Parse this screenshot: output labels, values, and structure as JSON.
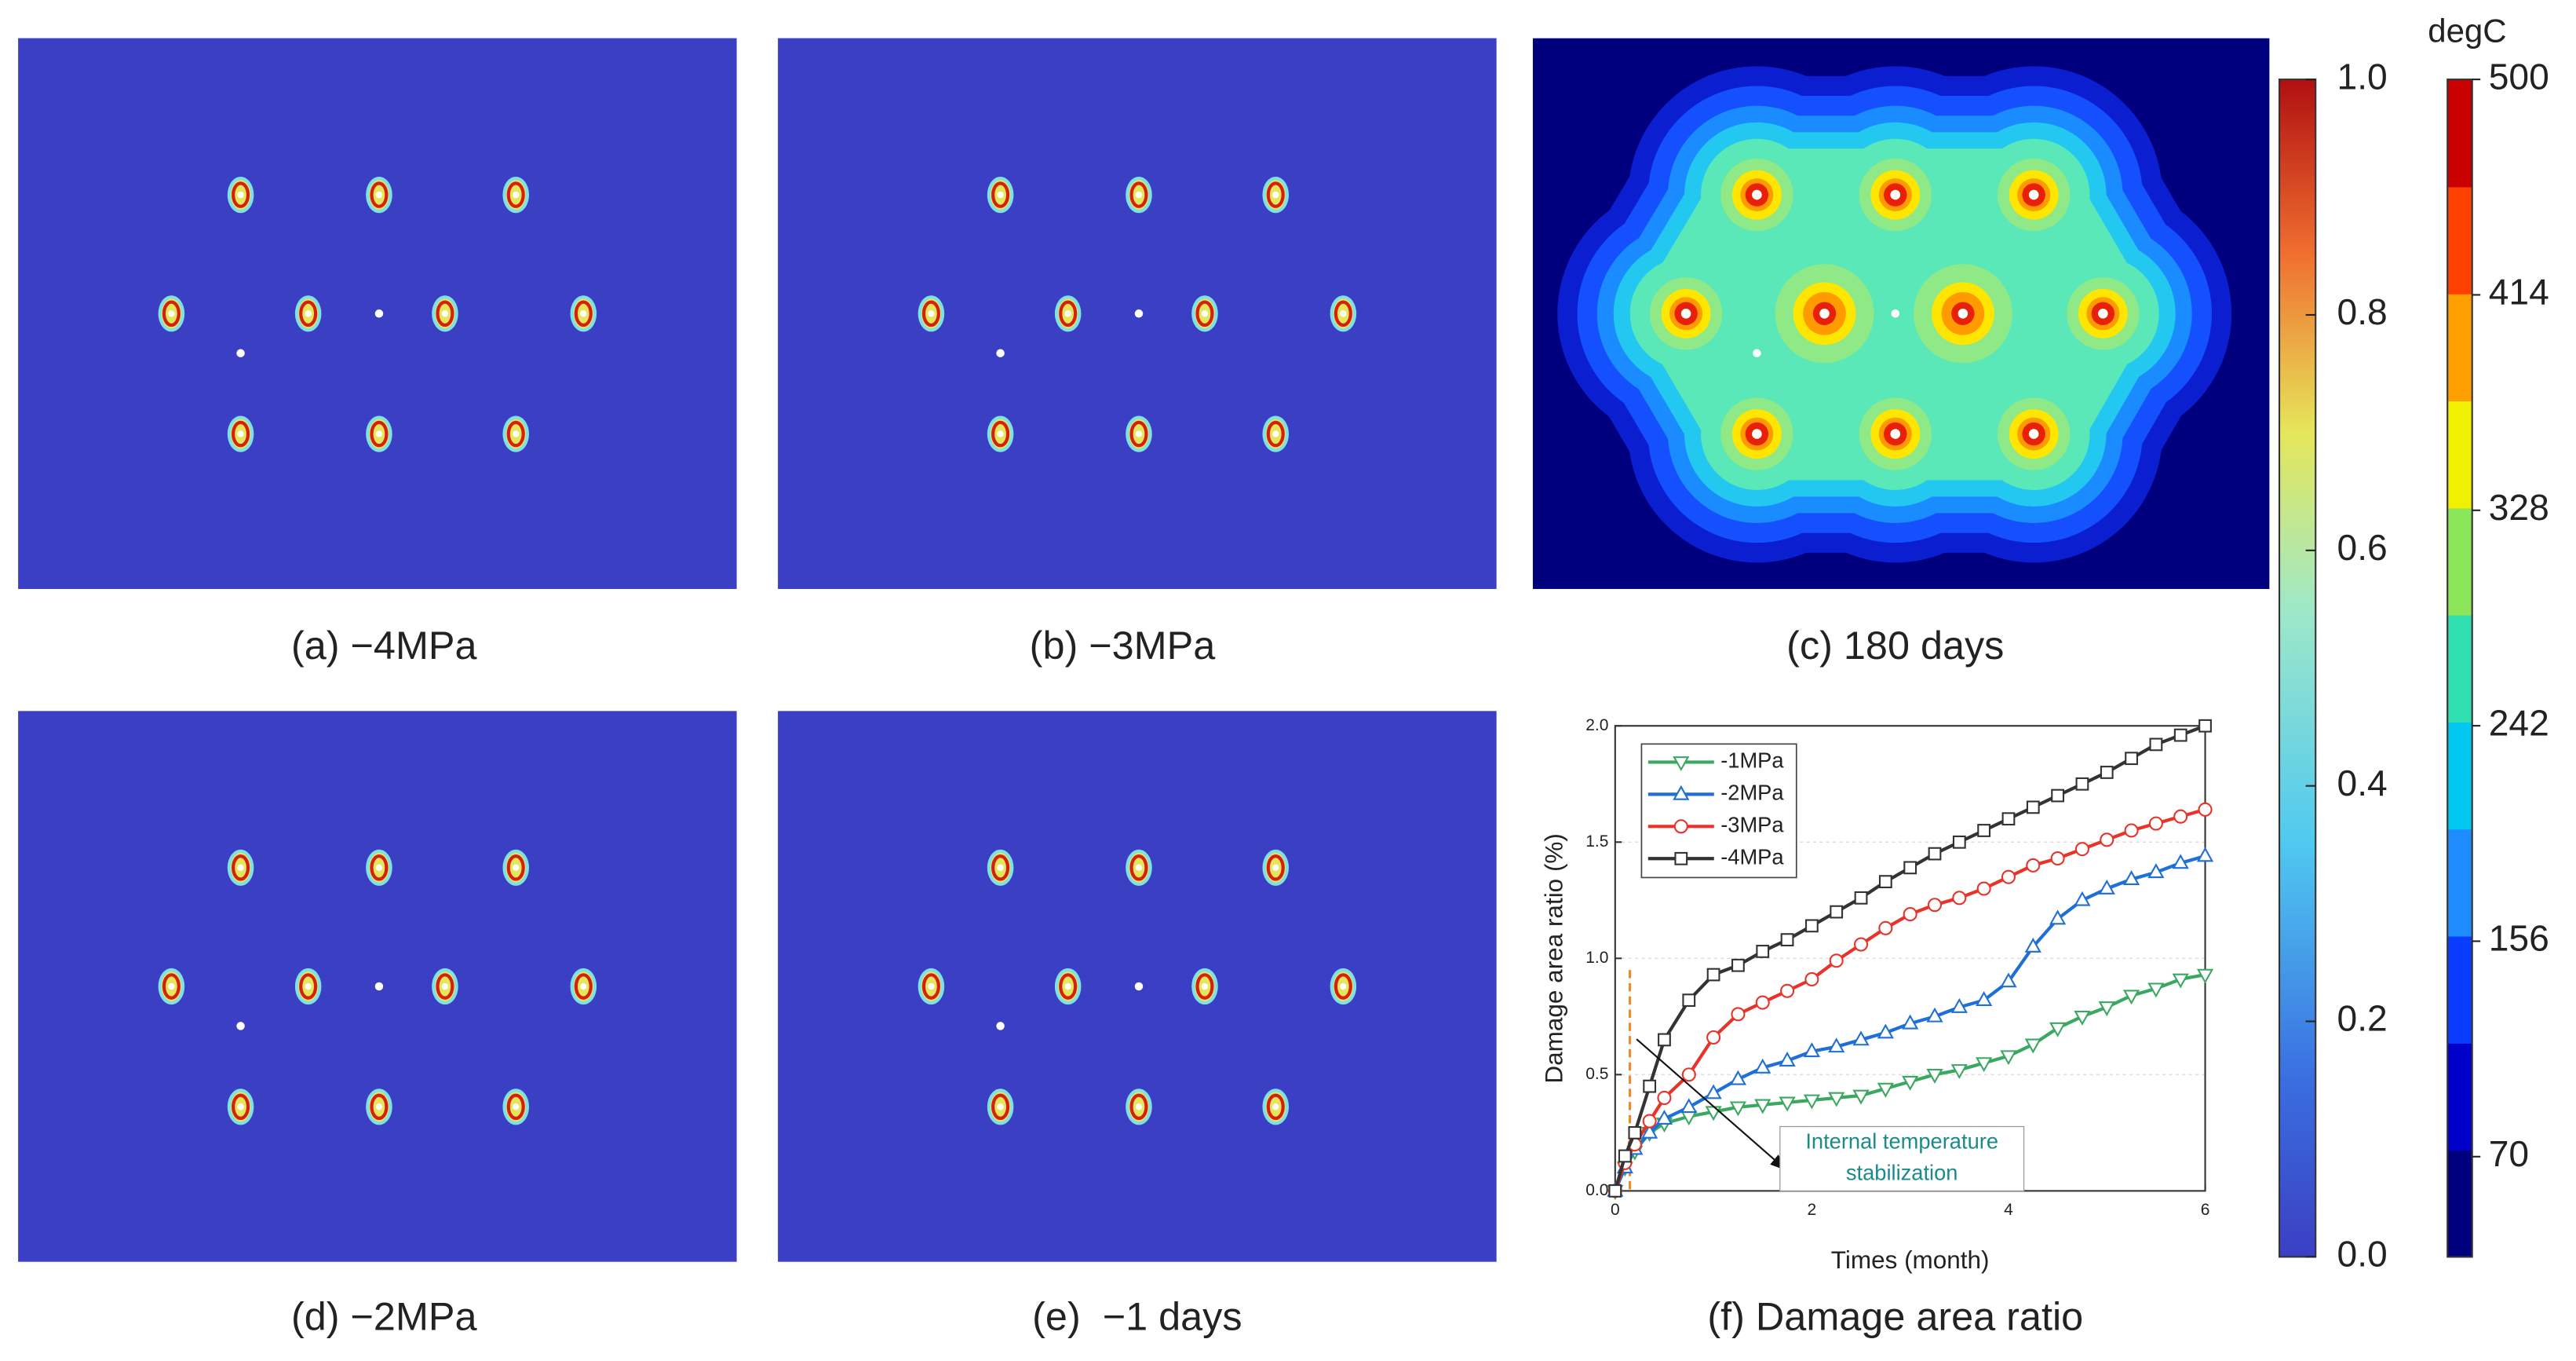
{
  "panels": [
    {
      "caption": "(a) −4MPa"
    },
    {
      "caption": "(b) −3MPa"
    },
    {
      "caption": "(c) 180 days"
    },
    {
      "caption": "(d) −2MPa"
    },
    {
      "caption": "(e)  −1 days"
    },
    {
      "caption": "(f) Damage area ratio"
    }
  ],
  "damage_colorbar": {
    "lim": [
      0,
      1
    ],
    "ticks": [
      {
        "value": 0,
        "label": "0.0"
      },
      0.2,
      0.4,
      0.6,
      0.8,
      {
        "value": 1,
        "label": "1.0"
      }
    ]
  },
  "temperature_colorbar": {
    "title": "degC",
    "lim": [
      30,
      500
    ],
    "ticks": [
      70,
      156,
      242,
      328,
      414,
      500
    ],
    "colors": [
      "#00007f",
      "#0000c8",
      "#0a3cff",
      "#1e8cff",
      "#00c8f0",
      "#30e0b0",
      "#8ce65a",
      "#f0f000",
      "#ffa000",
      "#ff4000",
      "#c80000"
    ]
  },
  "chart_data": {
    "type": "line",
    "xlabel": "Times (month)",
    "ylabel": "Damage area ratio (%)",
    "x": [
      0,
      0.1,
      0.2,
      0.35,
      0.5,
      0.75,
      1.0,
      1.25,
      1.5,
      1.75,
      2.0,
      2.25,
      2.5,
      2.75,
      3.0,
      3.25,
      3.5,
      3.75,
      4.0,
      4.25,
      4.5,
      4.75,
      5.0,
      5.25,
      5.5,
      5.75,
      6.0
    ],
    "series": [
      {
        "name": "-1MPa",
        "color": "#3aa860",
        "marker": "triangle-down",
        "values": [
          0,
          0.1,
          0.17,
          0.25,
          0.29,
          0.32,
          0.34,
          0.36,
          0.37,
          0.38,
          0.39,
          0.4,
          0.41,
          0.44,
          0.47,
          0.5,
          0.52,
          0.55,
          0.58,
          0.63,
          0.7,
          0.75,
          0.79,
          0.84,
          0.87,
          0.91,
          0.93
        ]
      },
      {
        "name": "-2MPa",
        "color": "#1f6fd6",
        "marker": "triangle-up",
        "values": [
          0,
          0.1,
          0.18,
          0.25,
          0.31,
          0.36,
          0.42,
          0.48,
          0.53,
          0.56,
          0.6,
          0.62,
          0.65,
          0.68,
          0.72,
          0.75,
          0.79,
          0.82,
          0.9,
          1.05,
          1.17,
          1.25,
          1.3,
          1.34,
          1.37,
          1.41,
          1.44
        ]
      },
      {
        "name": "-3MPa",
        "color": "#e8332a",
        "marker": "circle",
        "values": [
          0,
          0.12,
          0.2,
          0.3,
          0.4,
          0.5,
          0.66,
          0.76,
          0.81,
          0.86,
          0.91,
          0.99,
          1.06,
          1.13,
          1.19,
          1.23,
          1.26,
          1.3,
          1.35,
          1.4,
          1.43,
          1.47,
          1.51,
          1.55,
          1.58,
          1.61,
          1.64
        ]
      },
      {
        "name": "-4MPa",
        "color": "#333333",
        "marker": "square",
        "values": [
          0,
          0.15,
          0.25,
          0.45,
          0.65,
          0.82,
          0.93,
          0.97,
          1.03,
          1.08,
          1.14,
          1.2,
          1.26,
          1.33,
          1.39,
          1.45,
          1.5,
          1.55,
          1.6,
          1.65,
          1.7,
          1.75,
          1.8,
          1.86,
          1.92,
          1.96,
          2.0
        ]
      }
    ],
    "xlim": [
      0,
      6
    ],
    "xticks": [
      0,
      2,
      4,
      6
    ],
    "ylim": [
      0,
      2
    ],
    "yticks": [
      {
        "value": 0,
        "label": "0.0"
      },
      0.5,
      {
        "value": 1,
        "label": "1.0"
      },
      1.5,
      {
        "value": 2,
        "label": "2.0"
      }
    ],
    "grid": true,
    "legend": "upper left",
    "vline": 0.15,
    "vline_color": "#f08a24",
    "annotation": [
      "Internal temperature",
      "stabilization"
    ],
    "annotation_color": "#1a8a8a"
  }
}
